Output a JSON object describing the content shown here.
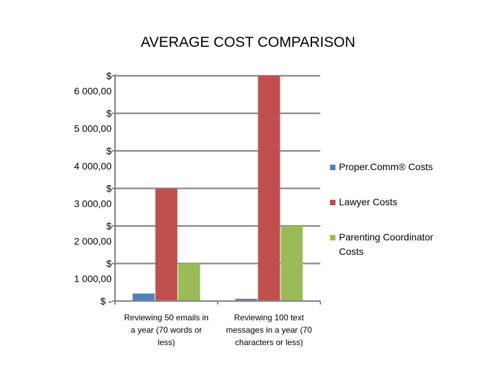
{
  "chart_data": {
    "type": "bar",
    "title": "AVERAGE COST COMPARISON",
    "xlabel": "",
    "ylabel": "",
    "ylim": [
      0,
      6000
    ],
    "y_ticks": [
      {
        "value": 0,
        "lines": [
          "$ -"
        ]
      },
      {
        "value": 1000,
        "lines": [
          "$",
          "1 000,00"
        ]
      },
      {
        "value": 2000,
        "lines": [
          "$",
          "2 000,00"
        ]
      },
      {
        "value": 3000,
        "lines": [
          "$",
          "3 000,00"
        ]
      },
      {
        "value": 4000,
        "lines": [
          "$",
          "4 000,00"
        ]
      },
      {
        "value": 5000,
        "lines": [
          "$",
          "5 000,00"
        ]
      },
      {
        "value": 6000,
        "lines": [
          "$",
          "6 000,00"
        ]
      }
    ],
    "categories": [
      [
        "Reviewing 50 emails in",
        "a year (70 words or",
        "less)"
      ],
      [
        "Reviewing 100 text",
        "messages in a year (70",
        "characters or less)"
      ]
    ],
    "series": [
      {
        "name": "Proper.Comm® Costs",
        "color": "#4f81bd",
        "values": [
          200,
          60
        ]
      },
      {
        "name": "Lawyer Costs",
        "color": "#c0504d",
        "values": [
          3000,
          6000
        ]
      },
      {
        "name": "Parenting Coordinator Costs",
        "legend_lines": [
          "Parenting Coordinator",
          "Costs"
        ],
        "color": "#9bbb59",
        "values": [
          1000,
          2000
        ]
      }
    ],
    "grid": true,
    "legend": "right",
    "gridline_color": "#868686"
  }
}
